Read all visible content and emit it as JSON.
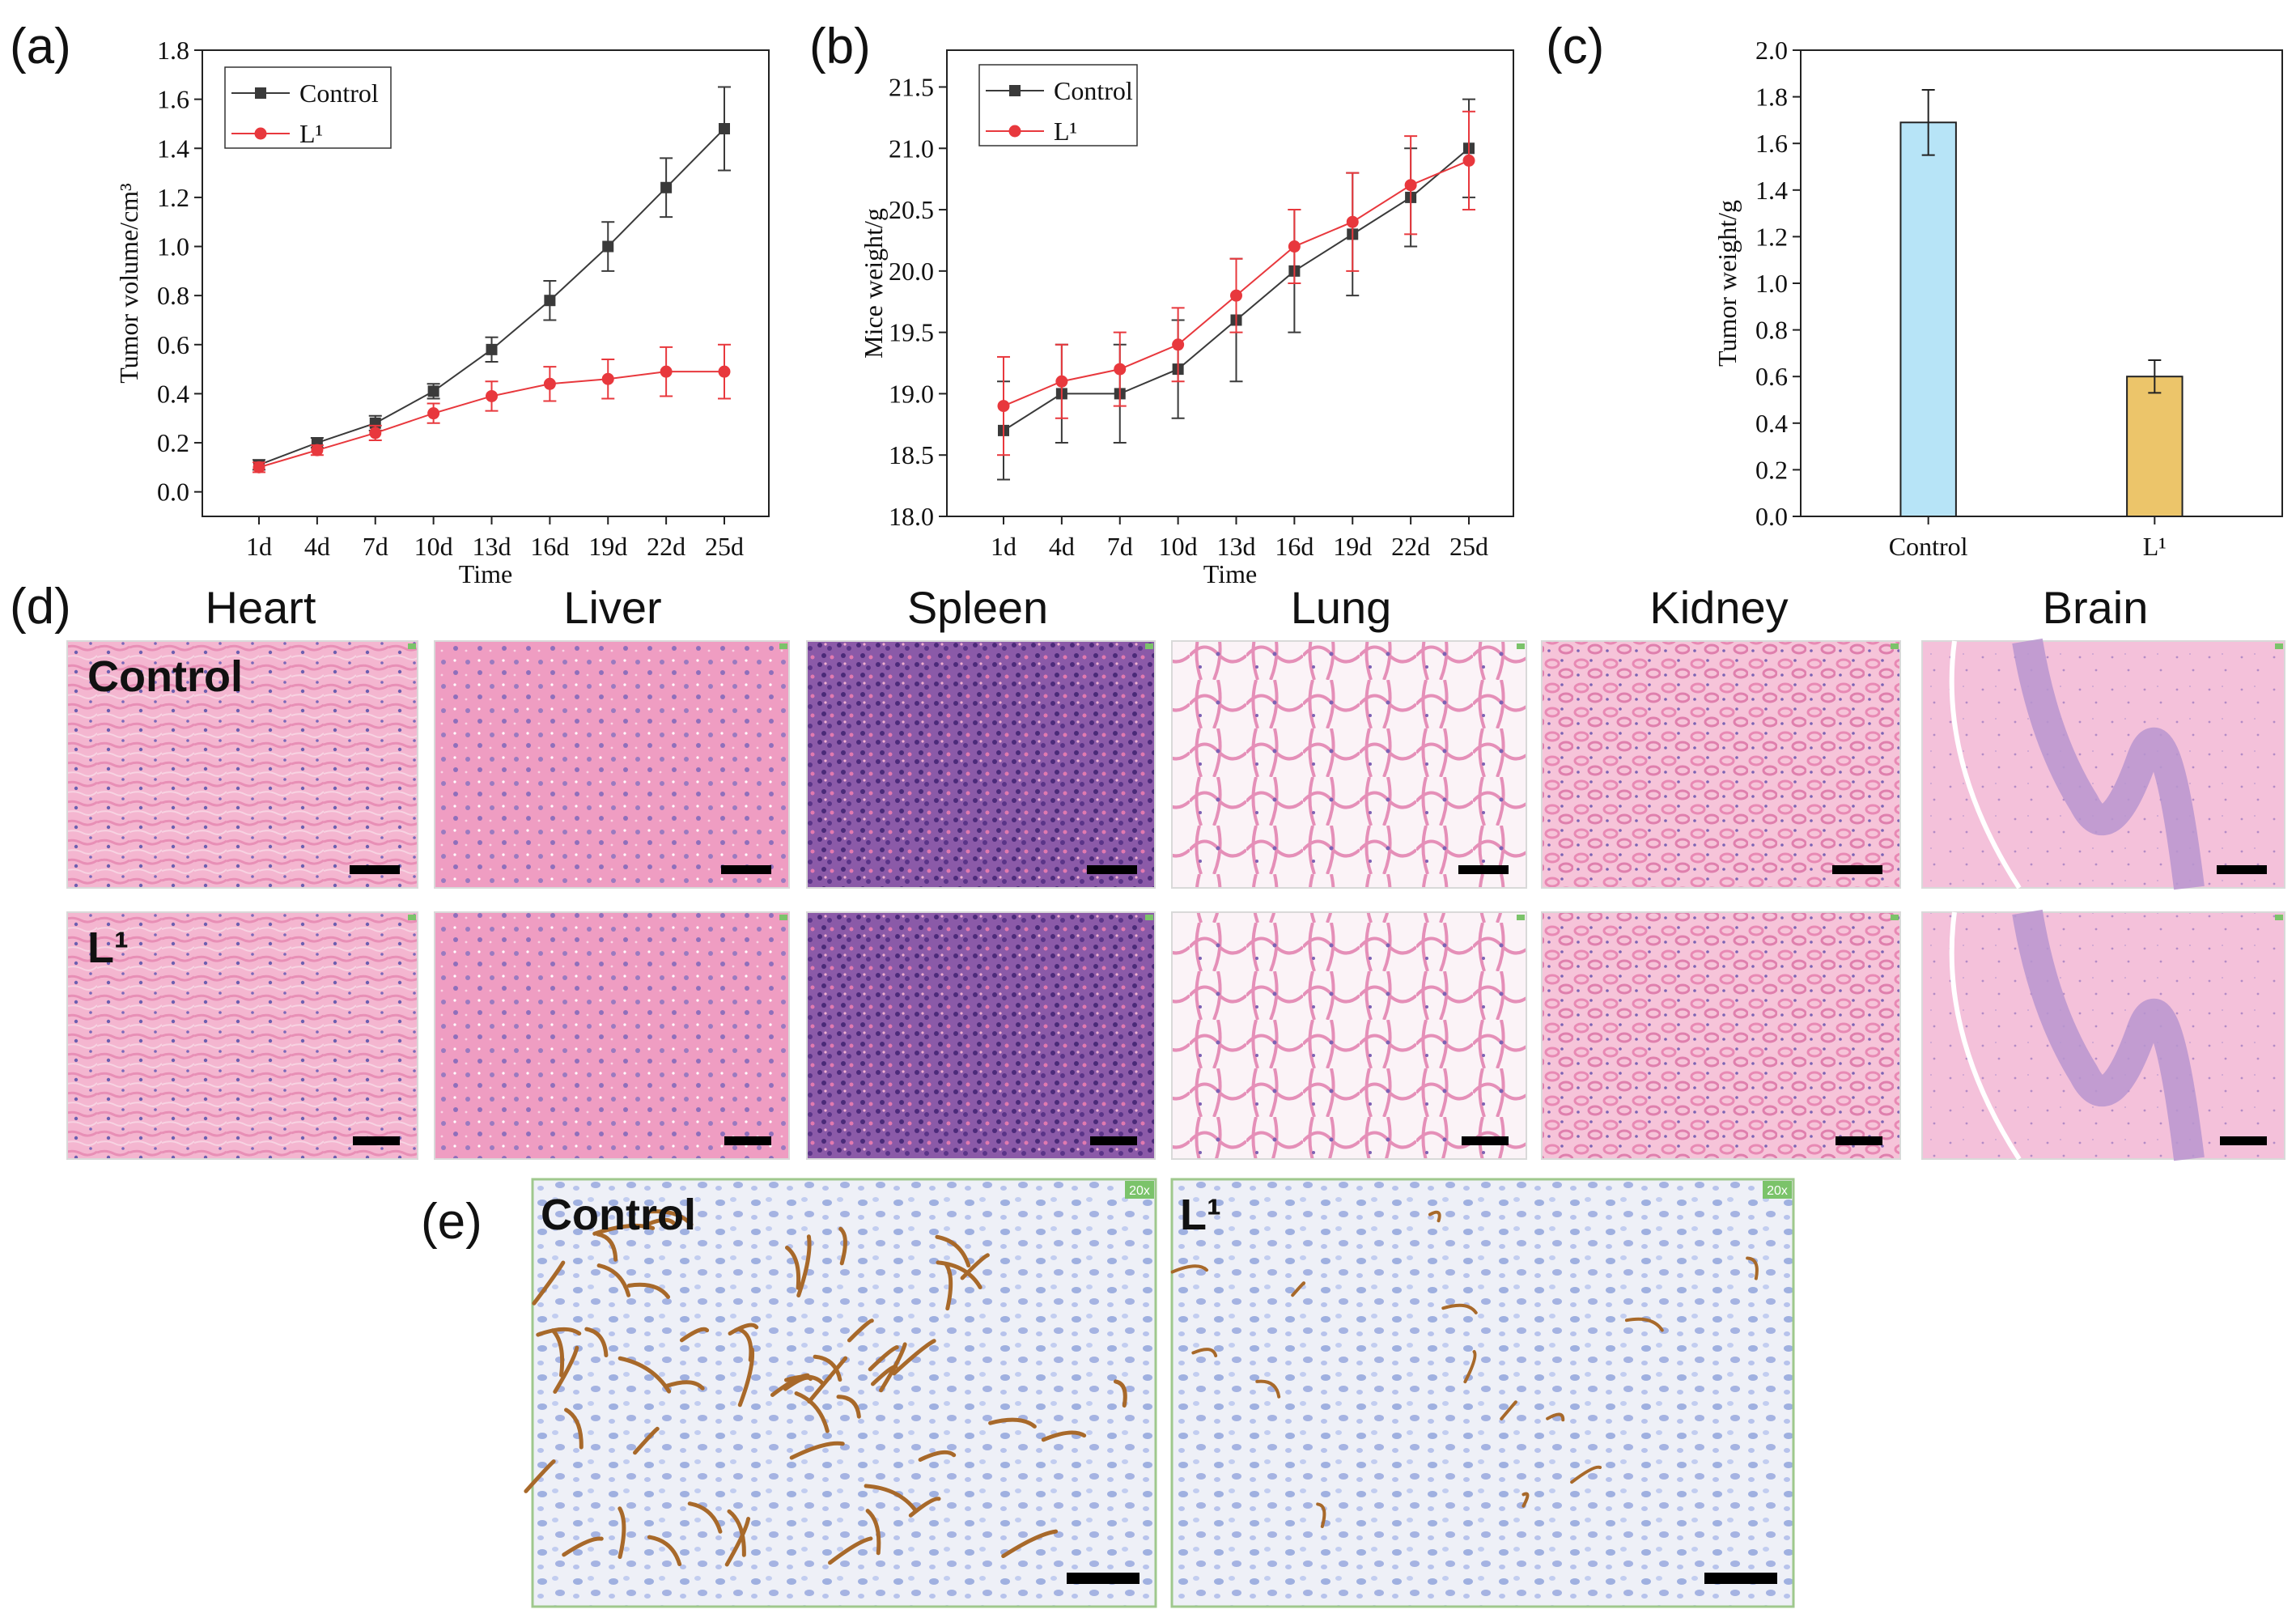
{
  "panel_labels": {
    "a": "(a)",
    "b": "(b)",
    "c": "(c)",
    "d": "(d)",
    "e": "(e)"
  },
  "chart_data": [
    {
      "id": "a",
      "type": "line",
      "title": "",
      "xlabel": "Time",
      "ylabel": "Tumor volume/cm³",
      "categories": [
        "1d",
        "4d",
        "7d",
        "10d",
        "13d",
        "16d",
        "19d",
        "22d",
        "25d"
      ],
      "ylim": [
        -0.1,
        1.8
      ],
      "yticks": [
        "0.0",
        "0.2",
        "0.4",
        "0.6",
        "0.8",
        "1.0",
        "1.2",
        "1.4",
        "1.6",
        "1.8"
      ],
      "legend_position": "top-left",
      "series": [
        {
          "name": "Control",
          "color": "#3a3a3a",
          "marker": "square",
          "values": [
            0.11,
            0.2,
            0.28,
            0.41,
            0.58,
            0.78,
            1.0,
            1.24,
            1.48
          ],
          "errors": [
            0.02,
            0.02,
            0.03,
            0.03,
            0.05,
            0.08,
            0.1,
            0.12,
            0.17
          ]
        },
        {
          "name": "L¹",
          "color": "#e8383d",
          "marker": "circle",
          "values": [
            0.1,
            0.17,
            0.24,
            0.32,
            0.39,
            0.44,
            0.46,
            0.49,
            0.49
          ],
          "errors": [
            0.02,
            0.02,
            0.03,
            0.04,
            0.06,
            0.07,
            0.08,
            0.1,
            0.11
          ]
        }
      ]
    },
    {
      "id": "b",
      "type": "line",
      "title": "",
      "xlabel": "Time",
      "ylabel": "Mice weight/g",
      "categories": [
        "1d",
        "4d",
        "7d",
        "10d",
        "13d",
        "16d",
        "19d",
        "22d",
        "25d"
      ],
      "ylim": [
        18.0,
        21.8
      ],
      "yticks": [
        "18.0",
        "18.5",
        "19.0",
        "19.5",
        "20.0",
        "20.5",
        "21.0",
        "21.5"
      ],
      "legend_position": "top-left",
      "series": [
        {
          "name": "Control",
          "color": "#3a3a3a",
          "marker": "square",
          "values": [
            18.7,
            19.0,
            19.0,
            19.2,
            19.6,
            20.0,
            20.3,
            20.6,
            21.0
          ],
          "errors": [
            0.4,
            0.4,
            0.4,
            0.4,
            0.5,
            0.5,
            0.5,
            0.4,
            0.4
          ]
        },
        {
          "name": "L¹",
          "color": "#e8383d",
          "marker": "circle",
          "values": [
            18.9,
            19.1,
            19.2,
            19.4,
            19.8,
            20.2,
            20.4,
            20.7,
            20.9
          ],
          "errors": [
            0.4,
            0.3,
            0.3,
            0.3,
            0.3,
            0.3,
            0.4,
            0.4,
            0.4
          ]
        }
      ]
    },
    {
      "id": "c",
      "type": "bar",
      "title": "",
      "xlabel": "",
      "ylabel": "Tumor weight/g",
      "categories": [
        "Control",
        "L¹"
      ],
      "values": [
        1.69,
        0.6
      ],
      "errors": [
        0.14,
        0.07
      ],
      "colors": [
        "#b7e4f7",
        "#ecc56a"
      ],
      "ylim": [
        0.0,
        2.0
      ],
      "yticks": [
        "0.0",
        "0.2",
        "0.4",
        "0.6",
        "0.8",
        "1.0",
        "1.2",
        "1.4",
        "1.6",
        "1.8",
        "2.0"
      ]
    }
  ],
  "histology": {
    "organs": [
      "Heart",
      "Liver",
      "Spleen",
      "Lung",
      "Kidney",
      "Brain"
    ],
    "groups": [
      "Control",
      "L¹"
    ]
  },
  "ihc": {
    "groups": [
      "Control",
      "L¹"
    ],
    "magnification": "20x"
  },
  "colors": {
    "he_pink": "#f2b5cf",
    "he_purple": "#7d4a9e",
    "ihc_bg": "#eef0f7",
    "ihc_brown": "#a8692a",
    "ihc_blue": "#8fa0d8"
  }
}
